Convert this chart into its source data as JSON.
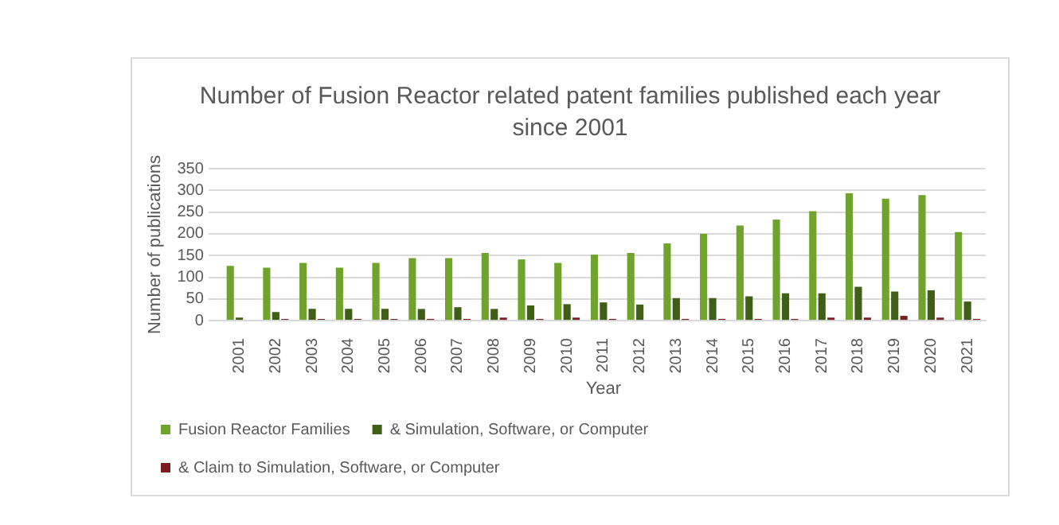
{
  "chart_data": {
    "type": "bar",
    "title": "Number of Fusion Reactor related patent families published each year since 2001",
    "xlabel": "Year",
    "ylabel": "Number of publications",
    "categories": [
      "2001",
      "2002",
      "2003",
      "2004",
      "2005",
      "2006",
      "2007",
      "2008",
      "2009",
      "2010",
      "2011",
      "2012",
      "2013",
      "2014",
      "2015",
      "2016",
      "2017",
      "2018",
      "2019",
      "2020",
      "2021"
    ],
    "series": [
      {
        "name": "Fusion Reactor Families",
        "color": "#70a32b",
        "values": [
          126,
          122,
          133,
          122,
          133,
          144,
          144,
          156,
          141,
          133,
          152,
          156,
          178,
          200,
          219,
          233,
          252,
          293,
          281,
          289,
          204
        ]
      },
      {
        "name": "& Simulation, Software, or Computer",
        "color": "#3f5f18",
        "values": [
          7,
          20,
          27,
          27,
          27,
          27,
          31,
          27,
          35,
          38,
          42,
          37,
          52,
          52,
          56,
          63,
          63,
          78,
          67,
          70,
          44
        ]
      },
      {
        "name": "& Claim to Simulation, Software, or Computer",
        "color": "#7a1e22",
        "values": [
          0,
          4,
          4,
          4,
          4,
          4,
          4,
          7,
          4,
          7,
          4,
          0,
          4,
          4,
          4,
          4,
          7,
          7,
          11,
          7,
          4
        ]
      }
    ],
    "ylim": [
      0,
      350
    ],
    "yticks": [
      0,
      50,
      100,
      150,
      200,
      250,
      300,
      350
    ],
    "grid": "y",
    "legend": "bottom"
  }
}
